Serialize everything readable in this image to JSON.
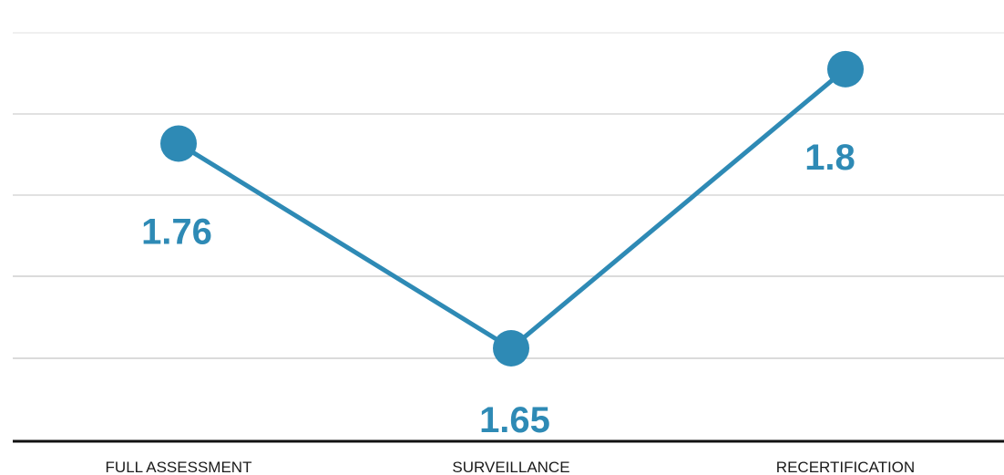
{
  "chart_data": {
    "type": "line",
    "categories": [
      "FULL ASSESSMENT",
      "SURVEILLANCE",
      "RECERTIFICATION"
    ],
    "series": [
      {
        "values": [
          1.76,
          1.65,
          1.8
        ],
        "value_labels": [
          "1.76",
          "1.65",
          "1.8"
        ]
      }
    ],
    "title": "",
    "xlabel": "",
    "ylabel": "",
    "ylim": [
      1.6,
      1.82
    ],
    "gridlines": true,
    "legend": "none",
    "data_labels": true,
    "colors": {
      "series": "#2E8AB5",
      "label": "#2E8AB5",
      "grid": "#cfcfcf",
      "axis": "#111111"
    }
  }
}
